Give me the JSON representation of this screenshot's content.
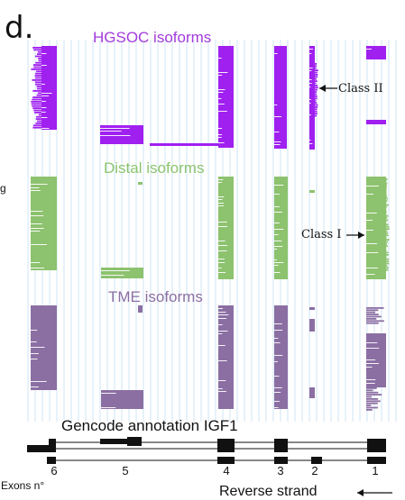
{
  "panel_label": "d.",
  "groups": [
    {
      "title": "HGSOC isoforms",
      "color": "#a020f0"
    },
    {
      "title": "Distal isoforms",
      "color": "#8dc26f"
    },
    {
      "title": "TME isoforms",
      "color": "#8b6fa3"
    }
  ],
  "annotations": {
    "class_two": "Class II",
    "class_one": "Class I"
  },
  "gencode_label": "Gencode annotation IGF1",
  "exon_axis_label": "Exons n°",
  "strand_label": "Reverse strand",
  "exon_numbers": [
    "6",
    "5",
    "4",
    "3",
    "2",
    "1"
  ],
  "cut_glyph": "g",
  "colors": {
    "grid": "#cfe6f5",
    "hgsoc": "#a020f0",
    "distal": "#8dc26f",
    "tme": "#8b6fa3",
    "gencode": "#111111"
  }
}
